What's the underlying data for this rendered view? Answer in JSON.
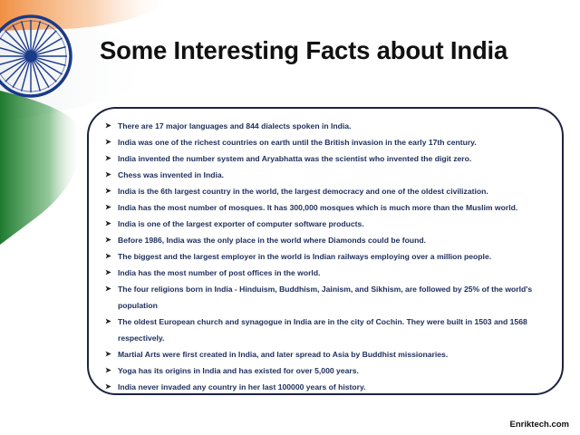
{
  "slide": {
    "title": "Some Interesting Facts about India",
    "facts": [
      "There are 17 major languages and 844 dialects spoken in India.",
      "India was one of the richest countries on earth until the British invasion in the early 17th century.",
      "India invented the number system and Aryabhatta was the scientist who invented the digit zero.",
      "Chess was invented in India.",
      "India is the 6th largest country in the world, the largest democracy and one of the oldest civilization.",
      "India has the most number of mosques. It has 300,000 mosques which is much more than the Muslim world.",
      "India is one of the largest exporter of computer software products.",
      "Before 1986, India was the only place in the world where Diamonds could be found.",
      "The biggest and the largest employer in the world is Indian railways employing over a million people.",
      "India has the most number of post offices in the world.",
      "The four religions born in India - Hinduism, Buddhism, Jainism, and Sikhism, are followed by 25% of the world's population",
      "The oldest European church and synagogue in India are in the city of Cochin. They were built in 1503 and 1568 respectively.",
      "Martial Arts were first created in India, and later spread to Asia by Buddhist missionaries.",
      "Yoga has its origins in India and has existed for over 5,000 years.",
      "India never invaded any country in her last 100000 years of history."
    ],
    "bullet_glyph": "➤",
    "footer": "Enriktech.com"
  },
  "colors": {
    "saffron": "#f4a460",
    "green": "#2e8b3e",
    "chakra_blue": "#1a3a8a",
    "box_border": "#1d2340",
    "fact_text": "#20305e"
  },
  "icons": {
    "flag": "indian-flag-chakra-icon"
  }
}
